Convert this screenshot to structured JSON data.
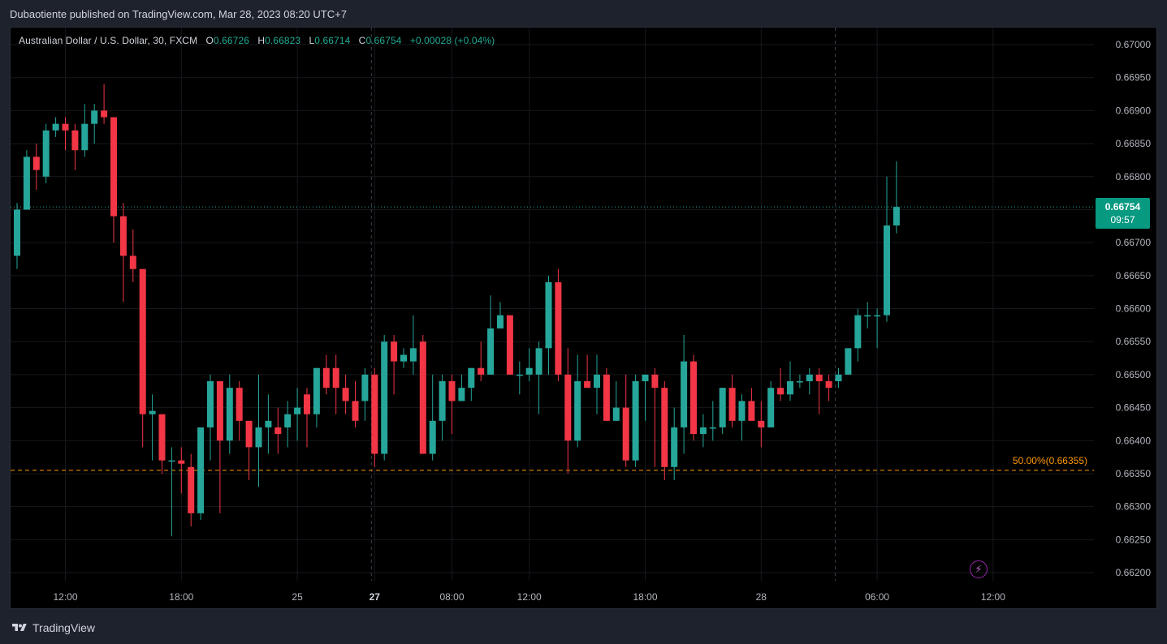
{
  "header": {
    "published_text": "Dubaotiente published on TradingView.com, Mar 28, 2023 08:20 UTC+7"
  },
  "symbol": {
    "name": "Australian Dollar / U.S. Dollar, 30, FXCM",
    "o_label": "O",
    "o_value": "0.66726",
    "h_label": "H",
    "h_value": "0.66823",
    "l_label": "L",
    "l_value": "0.66714",
    "c_label": "C",
    "c_value": "0.66754",
    "change": "+0.00028 (+0.04%)"
  },
  "last_price": {
    "value": "0.66754",
    "countdown": "09:57"
  },
  "fib_level": {
    "label": "50.00%(0.66355)",
    "price": 0.66355
  },
  "footer": {
    "brand": "TradingView"
  },
  "icons": {
    "flash": "flash-icon",
    "logo": "tradingview-logo-icon"
  },
  "colors": {
    "up": "#26a69a",
    "down": "#f23645",
    "fib": "#ff9800",
    "last_price_bg": "#089981",
    "background": "#000000",
    "text": "#b2b5be"
  },
  "chart_data": {
    "type": "candlestick",
    "timeframe": "30",
    "ylim": [
      0.66185,
      0.67035
    ],
    "y_ticks": [
      0.662,
      0.6625,
      0.663,
      0.6635,
      0.664,
      0.6645,
      0.665,
      0.6655,
      0.666,
      0.6665,
      0.667,
      0.6675,
      0.668,
      0.6685,
      0.669,
      0.6695,
      0.67
    ],
    "x_tick_labels": [
      {
        "label": "12:00",
        "index": 5,
        "bold": false
      },
      {
        "label": "18:00",
        "index": 17,
        "bold": false
      },
      {
        "label": "25",
        "index": 29,
        "bold": false
      },
      {
        "label": "27",
        "index": 37,
        "bold": true
      },
      {
        "label": "08:00",
        "index": 45,
        "bold": false
      },
      {
        "label": "12:00",
        "index": 53,
        "bold": false
      },
      {
        "label": "18:00",
        "index": 65,
        "bold": false
      },
      {
        "label": "28",
        "index": 77,
        "bold": false
      },
      {
        "label": "06:00",
        "index": 89,
        "bold": false
      },
      {
        "label": "12:00",
        "index": 101,
        "bold": false
      }
    ],
    "session_separators": [
      37,
      85
    ],
    "last_close": 0.66754,
    "candles": [
      {
        "o": 0.6668,
        "h": 0.6676,
        "l": 0.6666,
        "c": 0.6675
      },
      {
        "o": 0.6675,
        "h": 0.6684,
        "l": 0.6675,
        "c": 0.6683
      },
      {
        "o": 0.6683,
        "h": 0.6685,
        "l": 0.6678,
        "c": 0.6681
      },
      {
        "o": 0.668,
        "h": 0.6688,
        "l": 0.6679,
        "c": 0.6687
      },
      {
        "o": 0.6687,
        "h": 0.6689,
        "l": 0.6686,
        "c": 0.6688
      },
      {
        "o": 0.6688,
        "h": 0.6689,
        "l": 0.6684,
        "c": 0.6687
      },
      {
        "o": 0.6687,
        "h": 0.6688,
        "l": 0.6681,
        "c": 0.6684
      },
      {
        "o": 0.6684,
        "h": 0.6691,
        "l": 0.6683,
        "c": 0.6688
      },
      {
        "o": 0.6688,
        "h": 0.6691,
        "l": 0.6685,
        "c": 0.669
      },
      {
        "o": 0.669,
        "h": 0.6694,
        "l": 0.6688,
        "c": 0.6689
      },
      {
        "o": 0.6689,
        "h": 0.6689,
        "l": 0.667,
        "c": 0.6674
      },
      {
        "o": 0.6674,
        "h": 0.6676,
        "l": 0.6661,
        "c": 0.6668
      },
      {
        "o": 0.6668,
        "h": 0.6672,
        "l": 0.6664,
        "c": 0.6666
      },
      {
        "o": 0.6666,
        "h": 0.6666,
        "l": 0.6639,
        "c": 0.6644
      },
      {
        "o": 0.6644,
        "h": 0.6647,
        "l": 0.6637,
        "c": 0.66445
      },
      {
        "o": 0.6644,
        "h": 0.6644,
        "l": 0.6635,
        "c": 0.6637
      },
      {
        "o": 0.6637,
        "h": 0.6639,
        "l": 0.66255,
        "c": 0.6637
      },
      {
        "o": 0.6637,
        "h": 0.6639,
        "l": 0.6632,
        "c": 0.66365
      },
      {
        "o": 0.6636,
        "h": 0.6638,
        "l": 0.6627,
        "c": 0.6629
      },
      {
        "o": 0.6629,
        "h": 0.6642,
        "l": 0.6628,
        "c": 0.6642
      },
      {
        "o": 0.6642,
        "h": 0.665,
        "l": 0.6637,
        "c": 0.6649
      },
      {
        "o": 0.6649,
        "h": 0.6649,
        "l": 0.6629,
        "c": 0.664
      },
      {
        "o": 0.664,
        "h": 0.665,
        "l": 0.6638,
        "c": 0.6648
      },
      {
        "o": 0.6648,
        "h": 0.6649,
        "l": 0.664,
        "c": 0.6643
      },
      {
        "o": 0.6643,
        "h": 0.6643,
        "l": 0.6634,
        "c": 0.6639
      },
      {
        "o": 0.6639,
        "h": 0.665,
        "l": 0.6633,
        "c": 0.6642
      },
      {
        "o": 0.6642,
        "h": 0.6647,
        "l": 0.6638,
        "c": 0.6643
      },
      {
        "o": 0.6642,
        "h": 0.6645,
        "l": 0.6638,
        "c": 0.6641
      },
      {
        "o": 0.6642,
        "h": 0.6646,
        "l": 0.6639,
        "c": 0.6644
      },
      {
        "o": 0.6644,
        "h": 0.6648,
        "l": 0.664,
        "c": 0.6645
      },
      {
        "o": 0.6647,
        "h": 0.6648,
        "l": 0.6639,
        "c": 0.6644
      },
      {
        "o": 0.6644,
        "h": 0.6651,
        "l": 0.6642,
        "c": 0.6651
      },
      {
        "o": 0.6651,
        "h": 0.6653,
        "l": 0.6647,
        "c": 0.6648
      },
      {
        "o": 0.6651,
        "h": 0.6653,
        "l": 0.6644,
        "c": 0.6648
      },
      {
        "o": 0.6648,
        "h": 0.665,
        "l": 0.6644,
        "c": 0.6646
      },
      {
        "o": 0.6646,
        "h": 0.6649,
        "l": 0.6642,
        "c": 0.6643
      },
      {
        "o": 0.6646,
        "h": 0.6651,
        "l": 0.6643,
        "c": 0.665
      },
      {
        "o": 0.665,
        "h": 0.6651,
        "l": 0.6636,
        "c": 0.6638
      },
      {
        "o": 0.6638,
        "h": 0.6656,
        "l": 0.6637,
        "c": 0.6655
      },
      {
        "o": 0.6655,
        "h": 0.6656,
        "l": 0.6647,
        "c": 0.6652
      },
      {
        "o": 0.6652,
        "h": 0.6654,
        "l": 0.6651,
        "c": 0.6653
      },
      {
        "o": 0.6652,
        "h": 0.6659,
        "l": 0.665,
        "c": 0.6654
      },
      {
        "o": 0.6655,
        "h": 0.6656,
        "l": 0.6638,
        "c": 0.6638
      },
      {
        "o": 0.6638,
        "h": 0.665,
        "l": 0.6637,
        "c": 0.6643
      },
      {
        "o": 0.6643,
        "h": 0.665,
        "l": 0.664,
        "c": 0.6649
      },
      {
        "o": 0.6649,
        "h": 0.665,
        "l": 0.6641,
        "c": 0.6646
      },
      {
        "o": 0.6646,
        "h": 0.665,
        "l": 0.6646,
        "c": 0.6648
      },
      {
        "o": 0.6648,
        "h": 0.6651,
        "l": 0.6646,
        "c": 0.6651
      },
      {
        "o": 0.6651,
        "h": 0.6655,
        "l": 0.6649,
        "c": 0.665
      },
      {
        "o": 0.665,
        "h": 0.6662,
        "l": 0.665,
        "c": 0.6657
      },
      {
        "o": 0.6657,
        "h": 0.6661,
        "l": 0.6657,
        "c": 0.6659
      },
      {
        "o": 0.6659,
        "h": 0.6659,
        "l": 0.665,
        "c": 0.665
      },
      {
        "o": 0.665,
        "h": 0.6652,
        "l": 0.6647,
        "c": 0.665
      },
      {
        "o": 0.665,
        "h": 0.6654,
        "l": 0.6649,
        "c": 0.6651
      },
      {
        "o": 0.665,
        "h": 0.6655,
        "l": 0.6644,
        "c": 0.6654
      },
      {
        "o": 0.6654,
        "h": 0.6665,
        "l": 0.665,
        "c": 0.6664
      },
      {
        "o": 0.6664,
        "h": 0.6666,
        "l": 0.6649,
        "c": 0.665
      },
      {
        "o": 0.665,
        "h": 0.6654,
        "l": 0.6635,
        "c": 0.664
      },
      {
        "o": 0.664,
        "h": 0.6653,
        "l": 0.6639,
        "c": 0.6649
      },
      {
        "o": 0.6649,
        "h": 0.6653,
        "l": 0.6648,
        "c": 0.6648
      },
      {
        "o": 0.6648,
        "h": 0.6653,
        "l": 0.6644,
        "c": 0.665
      },
      {
        "o": 0.665,
        "h": 0.6651,
        "l": 0.6643,
        "c": 0.6643
      },
      {
        "o": 0.6643,
        "h": 0.6649,
        "l": 0.6643,
        "c": 0.6645
      },
      {
        "o": 0.6645,
        "h": 0.665,
        "l": 0.6636,
        "c": 0.6637
      },
      {
        "o": 0.6637,
        "h": 0.665,
        "l": 0.6636,
        "c": 0.6649
      },
      {
        "o": 0.6649,
        "h": 0.665,
        "l": 0.6643,
        "c": 0.665
      },
      {
        "o": 0.665,
        "h": 0.6651,
        "l": 0.6636,
        "c": 0.6648
      },
      {
        "o": 0.6648,
        "h": 0.6649,
        "l": 0.6634,
        "c": 0.6636
      },
      {
        "o": 0.6636,
        "h": 0.6645,
        "l": 0.6634,
        "c": 0.6642
      },
      {
        "o": 0.6642,
        "h": 0.6656,
        "l": 0.6638,
        "c": 0.6652
      },
      {
        "o": 0.6652,
        "h": 0.6653,
        "l": 0.664,
        "c": 0.6641
      },
      {
        "o": 0.6641,
        "h": 0.6644,
        "l": 0.6639,
        "c": 0.6642
      },
      {
        "o": 0.6642,
        "h": 0.6646,
        "l": 0.664,
        "c": 0.6642
      },
      {
        "o": 0.6642,
        "h": 0.6648,
        "l": 0.6641,
        "c": 0.6648
      },
      {
        "o": 0.6648,
        "h": 0.665,
        "l": 0.6642,
        "c": 0.6643
      },
      {
        "o": 0.6643,
        "h": 0.6647,
        "l": 0.664,
        "c": 0.6646
      },
      {
        "o": 0.6646,
        "h": 0.6648,
        "l": 0.6643,
        "c": 0.6643
      },
      {
        "o": 0.6643,
        "h": 0.6646,
        "l": 0.6639,
        "c": 0.6642
      },
      {
        "o": 0.6642,
        "h": 0.6649,
        "l": 0.6642,
        "c": 0.6648
      },
      {
        "o": 0.6648,
        "h": 0.6651,
        "l": 0.6646,
        "c": 0.6647
      },
      {
        "o": 0.6647,
        "h": 0.6652,
        "l": 0.6646,
        "c": 0.6649
      },
      {
        "o": 0.6649,
        "h": 0.665,
        "l": 0.6648,
        "c": 0.6649
      },
      {
        "o": 0.6649,
        "h": 0.6651,
        "l": 0.6647,
        "c": 0.665
      },
      {
        "o": 0.665,
        "h": 0.6651,
        "l": 0.6644,
        "c": 0.6649
      },
      {
        "o": 0.6649,
        "h": 0.665,
        "l": 0.6646,
        "c": 0.6648
      },
      {
        "o": 0.6649,
        "h": 0.6651,
        "l": 0.6648,
        "c": 0.665
      },
      {
        "o": 0.665,
        "h": 0.6654,
        "l": 0.665,
        "c": 0.6654
      },
      {
        "o": 0.6654,
        "h": 0.666,
        "l": 0.6652,
        "c": 0.6659
      },
      {
        "o": 0.6659,
        "h": 0.6661,
        "l": 0.6657,
        "c": 0.6659
      },
      {
        "o": 0.6659,
        "h": 0.666,
        "l": 0.6654,
        "c": 0.6659
      },
      {
        "o": 0.6659,
        "h": 0.668,
        "l": 0.6658,
        "c": 0.66726
      },
      {
        "o": 0.66726,
        "h": 0.66823,
        "l": 0.66714,
        "c": 0.66754
      }
    ]
  }
}
